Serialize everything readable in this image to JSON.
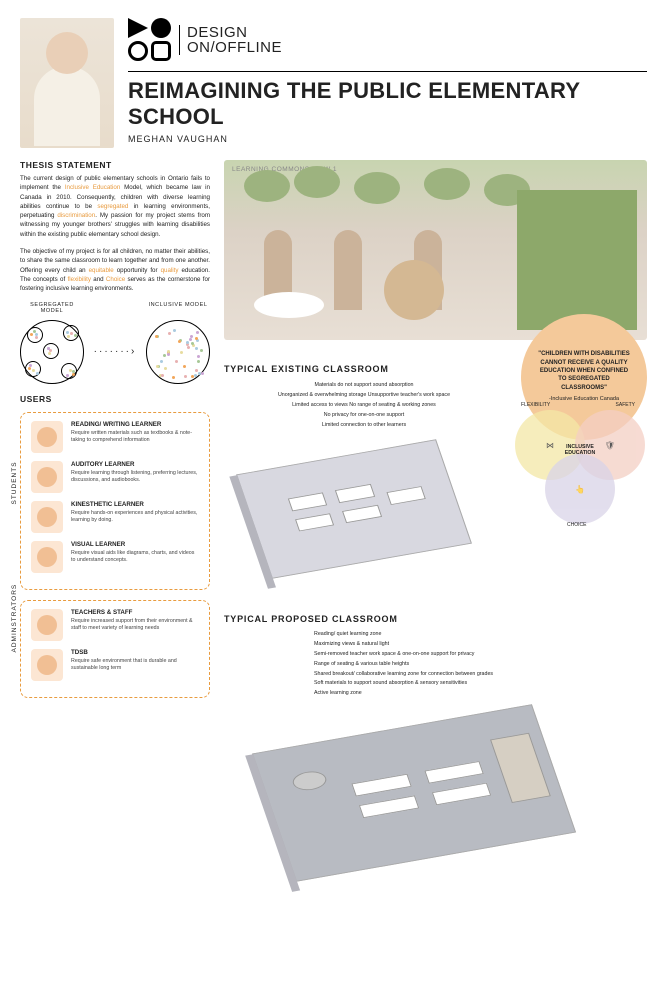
{
  "logo": {
    "line1": "DESIGN",
    "line2": "ON/OFFLINE"
  },
  "title": "REIMAGINING THE PUBLIC ELEMENTARY SCHOOL",
  "author": "MEGHAN VAUGHAN",
  "thesis": {
    "heading": "THESIS STATEMENT",
    "p1a": "The current design of public elementary schools in Ontario fails to implement the ",
    "p1h1": "Inclusive Education",
    "p1b": " Model, which became law in Canada in 2010. Consequently, children with diverse learning abilities continue to be ",
    "p1h2": "segregated",
    "p1c": " in learning environments, perpetuating ",
    "p1h3": "discrimination",
    "p1d": ". My passion for my project stems from witnessing my younger brothers' struggles with learning disabilities within the existing public elementary school design.",
    "p2a": "The objective of my project is for all children, no matter their abilities, to share the same classroom to learn together and from one another. Offering every child an ",
    "p2h1": "equitable",
    "p2b": " opportunity for ",
    "p2h2": "quality",
    "p2c": " education. The concepts of ",
    "p2h3": "flexibility",
    "p2d": " and ",
    "p2h4": "Choice",
    "p2e": " serves as the cornerstone for fostering inclusive learning environments."
  },
  "models": {
    "seg": "SEGREGATED MODEL",
    "inc": "INCLUSIVE MODEL",
    "arrow": "·······›"
  },
  "users": {
    "heading": "USERS",
    "students_label": "STUDENTS",
    "admins_label": "ADMINSTRATORS",
    "students": [
      {
        "title": "READING/ WRITING LEARNER",
        "desc": "Require written materials such as textbooks & note-taking to comprehend information"
      },
      {
        "title": "AUDITORY LEARNER",
        "desc": "Require learning through listening, preferring lectures, discussions, and audiobooks."
      },
      {
        "title": "KINESTHETIC LEARNER",
        "desc": "Require hands-on experiences and physical activities, learning by doing."
      },
      {
        "title": "VISUAL LEARNER",
        "desc": "Require visual aids like diagrams, charts, and videos to understand concepts."
      }
    ],
    "admins": [
      {
        "title": "TEACHERS & STAFF",
        "desc": "Require increased support from their environment & staff to meet variety of learning needs"
      },
      {
        "title": "TDSB",
        "desc": "Require safe environment that is durable and sustainable long term"
      }
    ]
  },
  "render_label": "LEARNING COMMONS VIEW  1",
  "quote": {
    "text": "\"CHILDREN WITH DISABILITIES CANNOT RECEIVE A QUALITY EDUCATION WHEN CONFINED TO SEGREGATED CLASSROOMS\"",
    "source": "-Inclusive Education Canada"
  },
  "existing": {
    "title": "TYPICAL EXISTING CLASSROOM",
    "callouts": [
      "Materials do not support sound absorption",
      "Unorganized & overwhelming storage        Unsupportive teacher's work space",
      "Limited access to views              No range of seating & working zones",
      "No privacy for one-on-one support",
      "Limited connection to other learners"
    ]
  },
  "venn": {
    "c1": "FLEXIBILITY",
    "c2": "SAFETY",
    "c3": "CHOICE",
    "center": "INCLUSIVE EDUCATION"
  },
  "proposed": {
    "title": "TYPICAL PROPOSED CLASSROOM",
    "callouts": [
      "Reading/ quiet learning zone",
      "Maximizing views & natural light",
      "Semi-removed teacher work space & one-on-one support for privacy",
      "Range of seating & various table heights",
      "Shared breakout/ collaborative learning zone for connection between grades",
      "Soft materials to support sound absorption & sensory sensitivities",
      "Active learning zone"
    ]
  },
  "colors": {
    "accent": "#e89b3f",
    "quote_bg": "#f4c99a",
    "dots": [
      "#f2a65a",
      "#a7c796",
      "#e8b1b1",
      "#aacbe0",
      "#e7dca0",
      "#cba6d4"
    ]
  }
}
